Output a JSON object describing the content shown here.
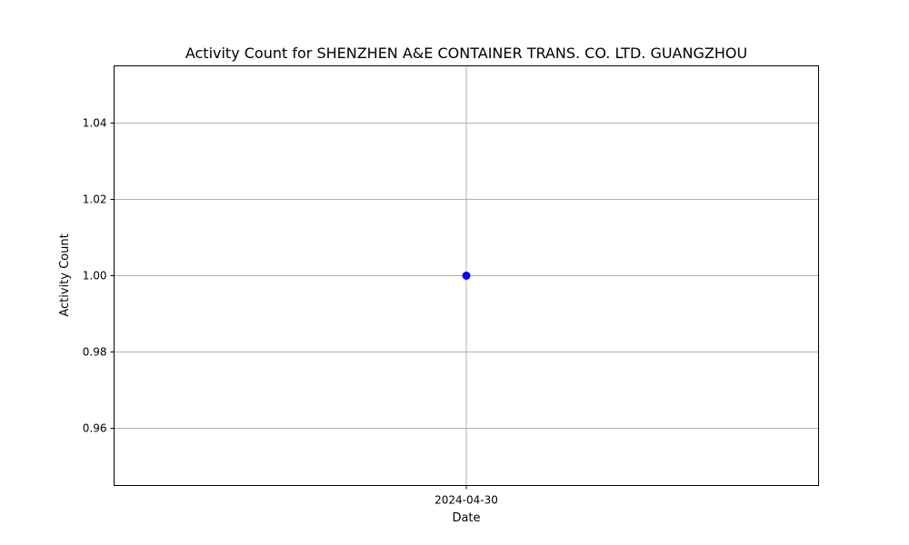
{
  "chart_data": {
    "type": "line",
    "title": "Activity Count for SHENZHEN A&E CONTAINER TRANS. CO. LTD. GUANGZHOU",
    "xlabel": "Date",
    "ylabel": "Activity Count",
    "x": [
      "2024-04-30"
    ],
    "series": [
      {
        "values": [
          1.0
        ],
        "color": "#0000ff",
        "marker": "circle"
      }
    ],
    "ylim": [
      0.945,
      1.055
    ],
    "yticks": [
      "0.96",
      "0.98",
      "1.00",
      "1.02",
      "1.04"
    ],
    "xticks": [
      "2024-04-30"
    ],
    "grid": true
  }
}
